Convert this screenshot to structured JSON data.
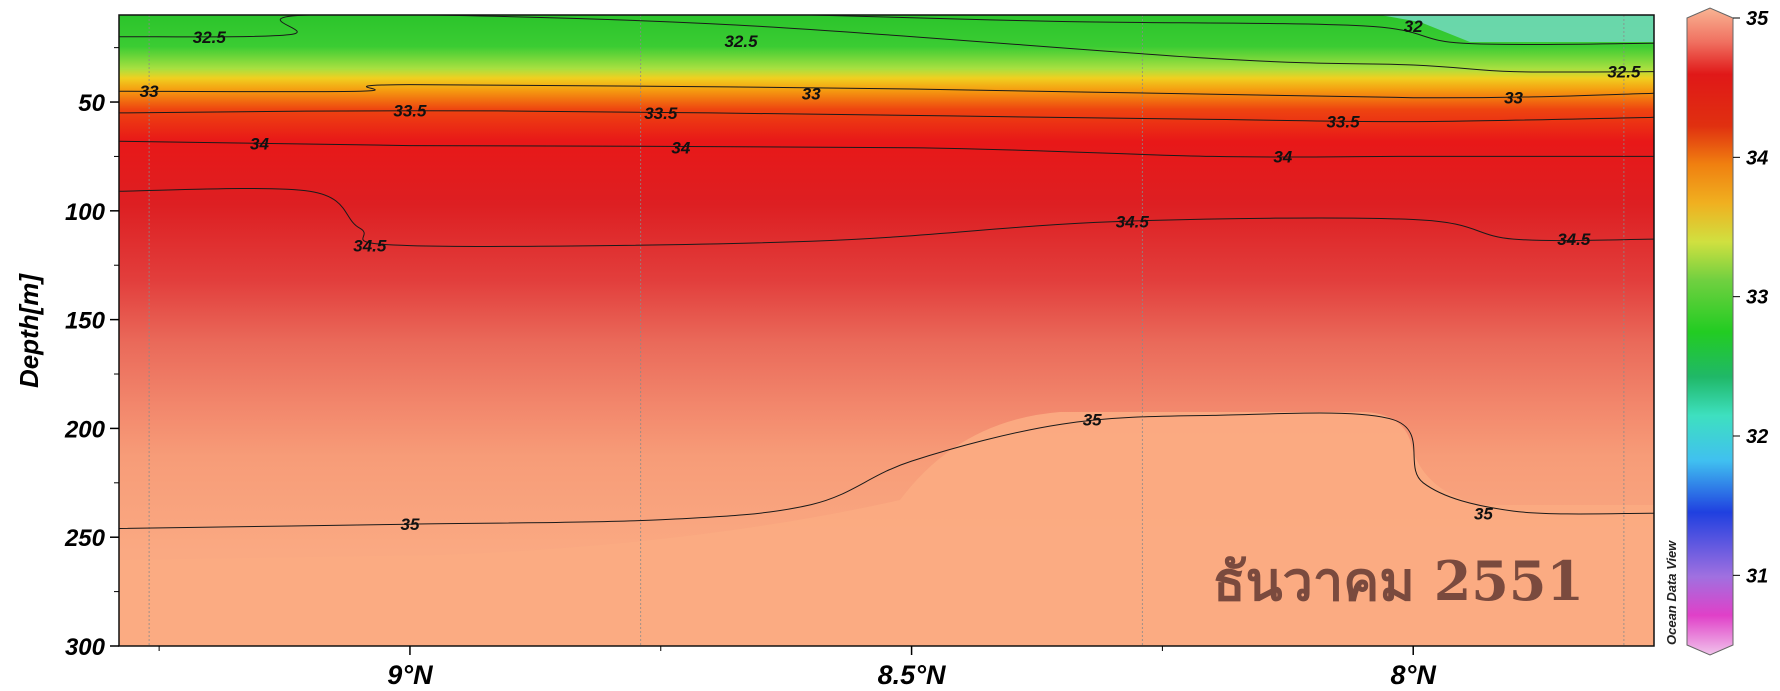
{
  "chart_data": {
    "type": "heatmap",
    "title": "",
    "xlabel": "",
    "ylabel": "Depth[m]",
    "x_axis": {
      "range_latitude": [
        9.29,
        7.76
      ],
      "ticks": [
        9.0,
        8.5,
        8.0
      ],
      "tick_labels": [
        "9°N",
        "8.5°N",
        "8°N"
      ],
      "station_latitudes": [
        9.26,
        8.77,
        8.27,
        7.79
      ]
    },
    "y_axis": {
      "range": [
        300,
        10
      ],
      "ticks": [
        50,
        100,
        150,
        200,
        250,
        300
      ],
      "tick_labels": [
        "50",
        "100",
        "150",
        "200",
        "250",
        "300"
      ]
    },
    "colorbar": {
      "label": "",
      "range": [
        30.5,
        35.0
      ],
      "ticks": [
        31,
        32,
        33,
        34,
        35
      ],
      "tick_labels": [
        "31",
        "32",
        "33",
        "34",
        "35"
      ]
    },
    "watermark": "Ocean Data View",
    "annotation": "ธันวาคม 2551",
    "contours": [
      {
        "level": 32,
        "label": "32",
        "lat": [
          8.6,
          8.35,
          8.05,
          7.95,
          7.76
        ],
        "depth": [
          10,
          13,
          15,
          23,
          23
        ]
      },
      {
        "level": 32.5,
        "label": "32.5",
        "lat": [
          9.29,
          9.12,
          9.1,
          8.7,
          8.2,
          8.0,
          7.9,
          7.76
        ],
        "depth": [
          20,
          19,
          10,
          14,
          30,
          33,
          36,
          36
        ]
      },
      {
        "level": 33,
        "label": "33",
        "lat": [
          9.29,
          9.05,
          9.0,
          8.5,
          8.0,
          7.76
        ],
        "depth": [
          45,
          45,
          42,
          44,
          48,
          46
        ]
      },
      {
        "level": 33.5,
        "label": "33.5",
        "lat": [
          9.29,
          9.0,
          8.7,
          8.2,
          8.0,
          7.76
        ],
        "depth": [
          55,
          54,
          55,
          58,
          59,
          57
        ]
      },
      {
        "level": 34,
        "label": "34",
        "lat": [
          9.29,
          9.0,
          8.5,
          8.2,
          8.0,
          7.76
        ],
        "depth": [
          68,
          70,
          71,
          75,
          75,
          75
        ]
      },
      {
        "level": 34.5,
        "label": "34.5",
        "lat": [
          9.29,
          9.1,
          9.05,
          9.0,
          8.6,
          8.3,
          8.0,
          7.9,
          7.76
        ],
        "depth": [
          91,
          91,
          108,
          116,
          114,
          105,
          104,
          113,
          113
        ]
      },
      {
        "level": 35,
        "label": "35",
        "lat": [
          9.29,
          9.0,
          8.75,
          8.6,
          8.5,
          8.35,
          8.2,
          8.02,
          7.99,
          7.9,
          7.76
        ],
        "depth": [
          246,
          244,
          242,
          235,
          215,
          198,
          194,
          196,
          225,
          238,
          239
        ]
      }
    ],
    "contour_labels": [
      {
        "text": "32.5",
        "lat": 9.2,
        "depth": 20
      },
      {
        "text": "32.5",
        "lat": 8.67,
        "depth": 22
      },
      {
        "text": "32",
        "lat": 8.0,
        "depth": 15
      },
      {
        "text": "32.5",
        "lat": 7.79,
        "depth": 36
      },
      {
        "text": "33",
        "lat": 9.26,
        "depth": 45
      },
      {
        "text": "33",
        "lat": 8.6,
        "depth": 46
      },
      {
        "text": "33",
        "lat": 7.9,
        "depth": 48
      },
      {
        "text": "33.5",
        "lat": 9.0,
        "depth": 54
      },
      {
        "text": "33.5",
        "lat": 8.75,
        "depth": 55
      },
      {
        "text": "33.5",
        "lat": 8.07,
        "depth": 59
      },
      {
        "text": "34",
        "lat": 9.15,
        "depth": 69
      },
      {
        "text": "34",
        "lat": 8.73,
        "depth": 71
      },
      {
        "text": "34",
        "lat": 8.13,
        "depth": 75
      },
      {
        "text": "34.5",
        "lat": 9.04,
        "depth": 116
      },
      {
        "text": "34.5",
        "lat": 8.28,
        "depth": 105
      },
      {
        "text": "34.5",
        "lat": 7.84,
        "depth": 113
      },
      {
        "text": "35",
        "lat": 9.0,
        "depth": 244
      },
      {
        "text": "35",
        "lat": 8.32,
        "depth": 196
      },
      {
        "text": "35",
        "lat": 7.93,
        "depth": 239
      }
    ]
  }
}
